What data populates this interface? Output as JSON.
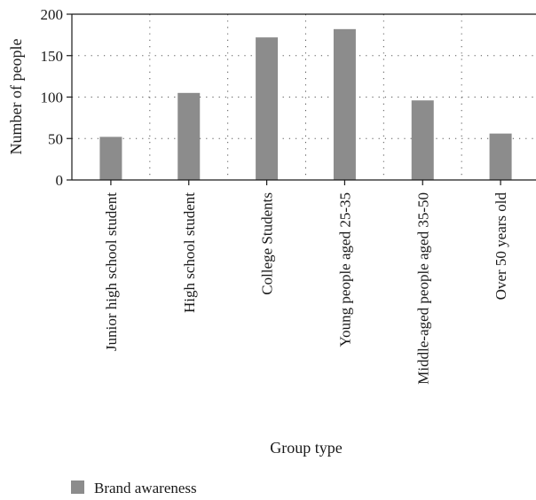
{
  "chart_data": {
    "type": "bar",
    "title": "",
    "xlabel": "Group type",
    "ylabel": "Number of people",
    "ylim": [
      0,
      200
    ],
    "yticks": [
      0,
      50,
      100,
      150,
      200
    ],
    "grid": true,
    "legend_position": "bottom-left",
    "categories": [
      "Junior high school student",
      "High school student",
      "College Students",
      "Young people aged 25-35",
      "Middle-aged people aged 35-50",
      "Over 50 years old"
    ],
    "series": [
      {
        "name": "Brand awareness",
        "color": "#8c8c8c",
        "values": [
          52,
          105,
          172,
          182,
          96,
          56
        ]
      }
    ]
  }
}
